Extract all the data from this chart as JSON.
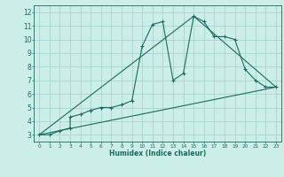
{
  "title": "",
  "xlabel": "Humidex (Indice chaleur)",
  "bg_color": "#cceee8",
  "grid_color": "#aad4ce",
  "line_color": "#1a6b5a",
  "xlim": [
    -0.5,
    23.5
  ],
  "ylim": [
    2.5,
    12.5
  ],
  "xticks": [
    0,
    1,
    2,
    3,
    4,
    5,
    6,
    7,
    8,
    9,
    10,
    11,
    12,
    13,
    14,
    15,
    16,
    17,
    18,
    19,
    20,
    21,
    22,
    23
  ],
  "yticks": [
    3,
    4,
    5,
    6,
    7,
    8,
    9,
    10,
    11,
    12
  ],
  "line1_x": [
    0,
    1,
    2,
    3,
    3,
    4,
    5,
    5,
    6,
    7,
    8,
    9,
    10,
    11,
    12,
    13,
    14,
    15,
    16,
    17,
    18,
    19,
    20,
    21,
    22,
    23
  ],
  "line1_y": [
    3.0,
    3.0,
    3.3,
    3.5,
    4.3,
    4.5,
    4.8,
    4.8,
    5.0,
    5.0,
    5.2,
    5.5,
    9.5,
    11.1,
    11.3,
    7.0,
    7.5,
    11.7,
    11.3,
    10.2,
    10.2,
    10.0,
    7.8,
    7.0,
    6.5,
    6.5
  ],
  "line2_x": [
    0,
    23
  ],
  "line2_y": [
    3.0,
    6.5
  ],
  "line3_x": [
    0,
    15,
    23
  ],
  "line3_y": [
    3.0,
    11.7,
    6.5
  ]
}
